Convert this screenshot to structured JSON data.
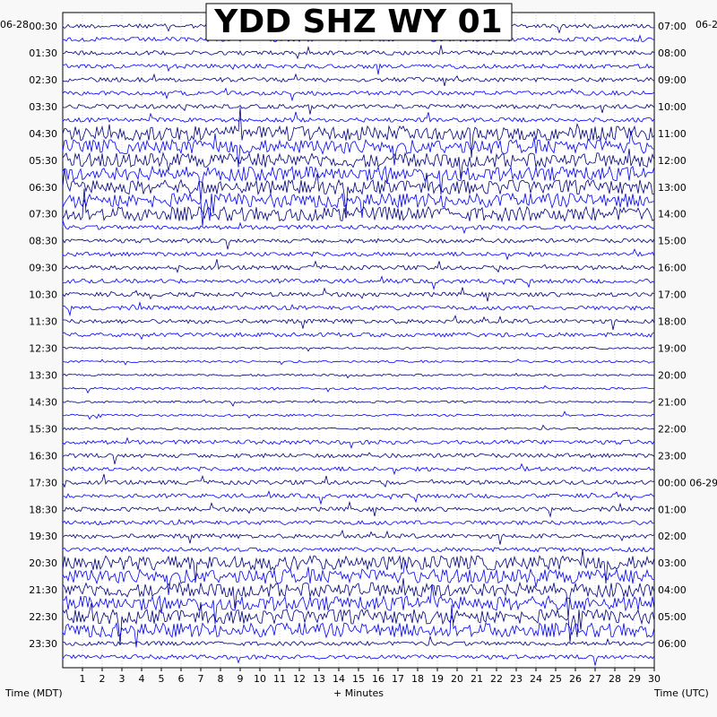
{
  "chart_data": {
    "type": "line",
    "title": "YDD SHZ WY 01",
    "xlabel": "+ Minutes",
    "left_axis_title": "Time (MDT)",
    "right_axis_title": "Time (UTC)",
    "date_left": "06-28",
    "date_right": "06-2",
    "x_ticks": [
      "1",
      "2",
      "3",
      "4",
      "5",
      "6",
      "7",
      "8",
      "9",
      "10",
      "11",
      "12",
      "13",
      "14",
      "15",
      "16",
      "17",
      "18",
      "19",
      "20",
      "21",
      "22",
      "23",
      "24",
      "25",
      "26",
      "27",
      "28",
      "29",
      "30"
    ],
    "xlim": [
      0,
      30
    ],
    "left_ticks": [
      "00:30",
      "01:30",
      "02:30",
      "03:30",
      "04:30",
      "05:30",
      "06:30",
      "07:30",
      "08:30",
      "09:30",
      "10:30",
      "11:30",
      "12:30",
      "13:30",
      "14:30",
      "15:30",
      "16:30",
      "17:30",
      "18:30",
      "19:30",
      "20:30",
      "21:30",
      "22:30",
      "23:30"
    ],
    "right_ticks": [
      "07:00",
      "08:00",
      "09:00",
      "10:00",
      "11:00",
      "12:00",
      "13:00",
      "14:00",
      "15:00",
      "16:00",
      "17:00",
      "18:00",
      "19:00",
      "20:00",
      "21:00",
      "22:00",
      "23:00",
      "00:00 06-29",
      "01:00",
      "02:00",
      "03:00",
      "04:00",
      "05:00",
      "06:00"
    ],
    "trace_rows": 48,
    "trace_colors": [
      "#00007f",
      "#0000ff"
    ],
    "clip_color": "#ff0000",
    "grid": true
  }
}
